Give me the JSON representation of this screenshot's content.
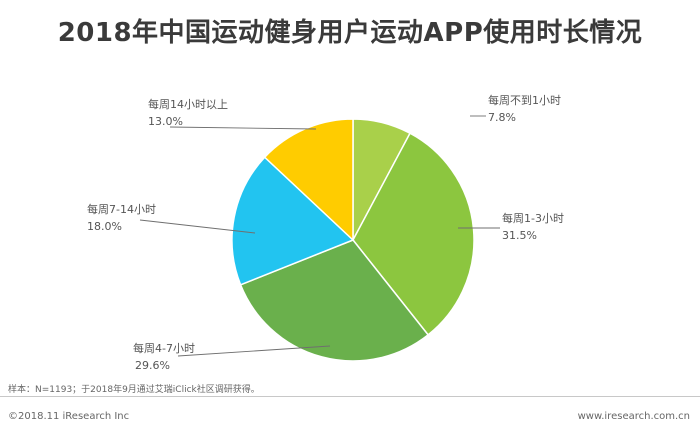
{
  "title": "2018年中国运动健身用户运动APP使用时长情况",
  "chart_data": {
    "type": "pie",
    "title": "2018年中国运动健身用户运动APP使用时长情况",
    "slices": [
      {
        "label": "每周不到1小时",
        "value": 7.8,
        "display": "7.8%",
        "color": "#a9d04a"
      },
      {
        "label": "每周1-3小时",
        "value": 31.5,
        "display": "31.5%",
        "color": "#8cc63f"
      },
      {
        "label": "每周4-7小时",
        "value": 29.6,
        "display": "29.6%",
        "color": "#6ab04c"
      },
      {
        "label": "每周7-14小时",
        "value": 18.0,
        "display": "18.0%",
        "color": "#22c4f0"
      },
      {
        "label": "每周14小时以上",
        "value": 13.0,
        "display": "13.0%",
        "color": "#ffcc00"
      }
    ]
  },
  "footer": {
    "note": "样本：N=1193；于2018年9月通过艾瑞iClick社区调研获得。",
    "copyright": "©2018.11 iResearch Inc",
    "site": "www.iresearch.com.cn"
  }
}
